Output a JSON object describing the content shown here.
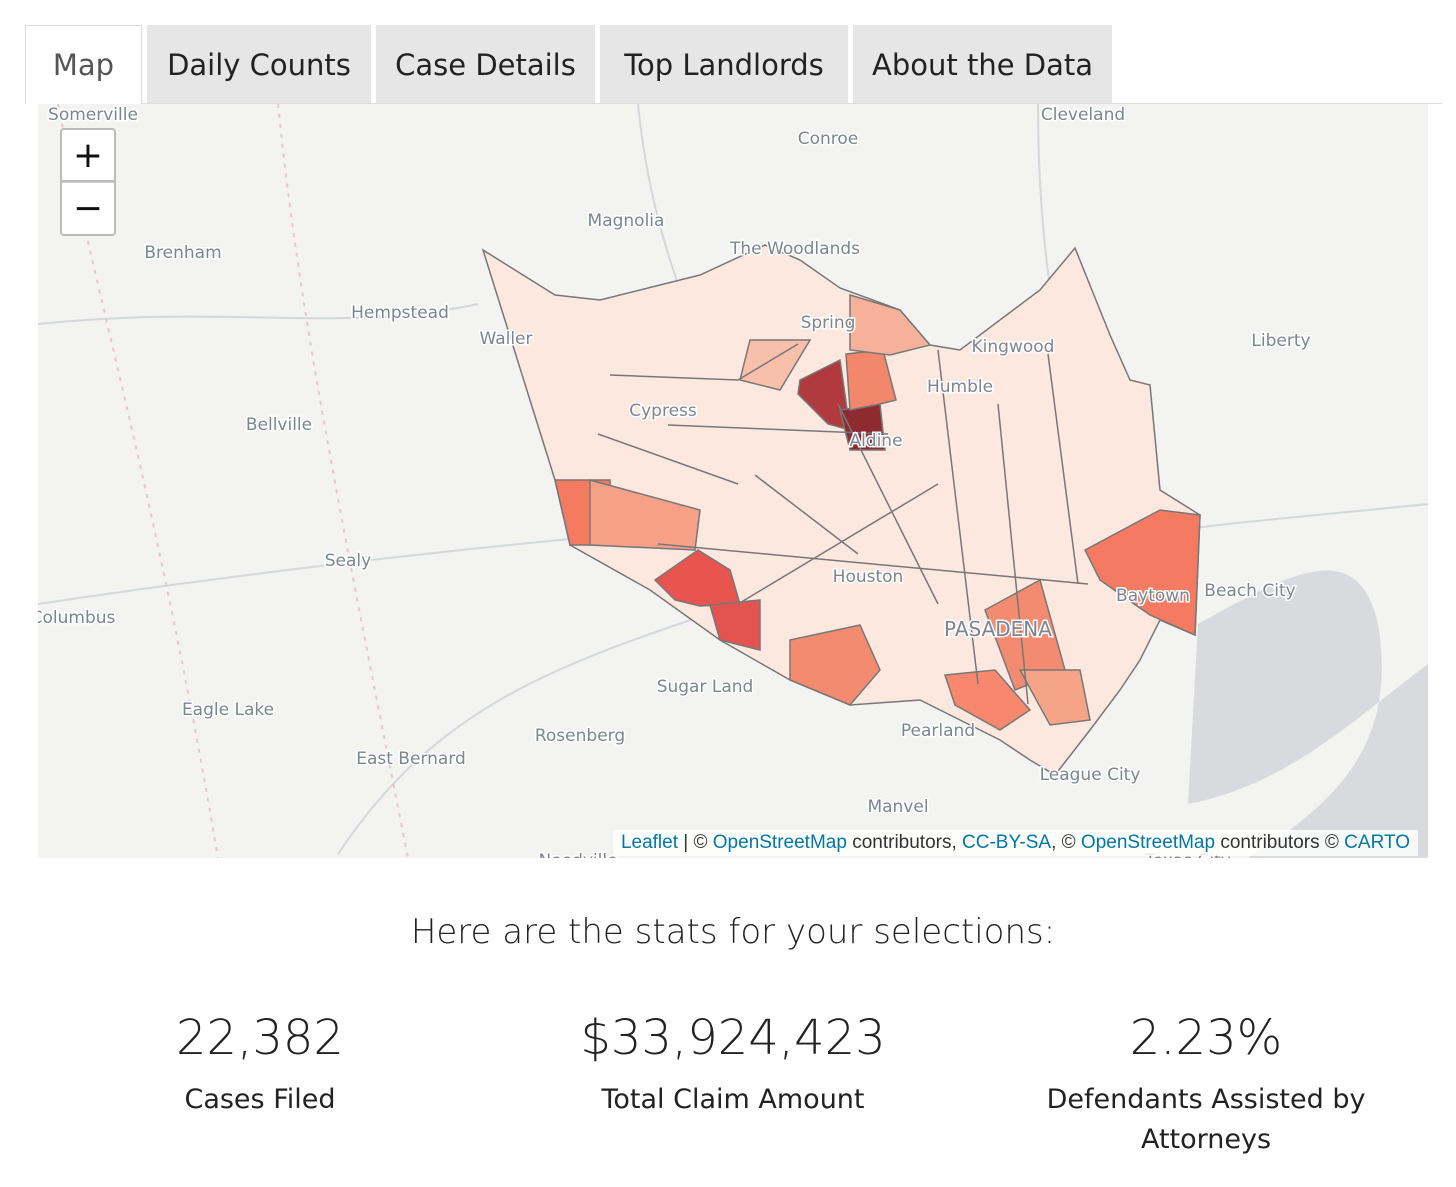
{
  "tabs": [
    "Map",
    "Daily Counts",
    "Case Details",
    "Top Landlords",
    "About the Data"
  ],
  "map": {
    "zoom_in": "+",
    "zoom_out": "−",
    "place_labels": [
      "Somerville",
      "Cleveland",
      "Conroe",
      "Magnolia",
      "Brenham",
      "The Woodlands",
      "Hempstead",
      "Waller",
      "Spring",
      "Kingwood",
      "Liberty",
      "Humble",
      "Cypress",
      "Aldine",
      "Bellville",
      "Sealy",
      "Columbus",
      "Houston",
      "Baytown",
      "Beach City",
      "PASADENA",
      "Sugar Land",
      "Eagle Lake",
      "Rosenberg",
      "Pearland",
      "East Bernard",
      "League City",
      "Manvel",
      "Needville",
      "Texas City"
    ],
    "attribution": [
      "Leaflet",
      " | © ",
      "OpenStreetMap",
      " contributors, ",
      "CC-BY-SA",
      ", © ",
      "OpenStreetMap",
      " contributors © ",
      "CARTO"
    ]
  },
  "stats": {
    "heading": "Here are the stats for your selections:",
    "items": [
      {
        "value": "22,382",
        "label": "Cases Filed"
      },
      {
        "value": "$33,924,423",
        "label": "Total Claim Amount"
      },
      {
        "value": "2.23%",
        "label": "Defendants Assisted by Attorneys"
      }
    ]
  }
}
